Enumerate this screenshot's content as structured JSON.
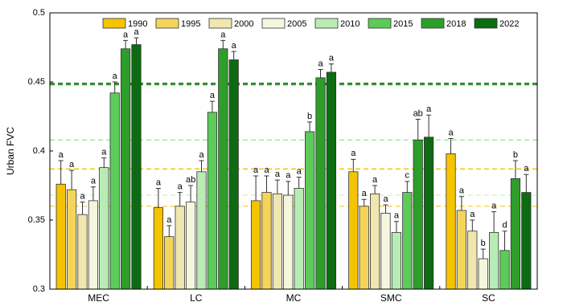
{
  "chart_data": {
    "type": "bar",
    "y_label": "Urban FVC",
    "categories": [
      "MEC",
      "LC",
      "MC",
      "SMC",
      "SC"
    ],
    "ylim": [
      0.3,
      0.5
    ],
    "yticks": [
      0.3,
      0.35,
      0.4,
      0.45,
      0.5
    ],
    "reference_lines": [
      {
        "value": 0.449,
        "color": "#0d6b12"
      },
      {
        "value": 0.448,
        "color": "#2e9e2a"
      },
      {
        "value": 0.408,
        "color": "#a8e6a0"
      },
      {
        "value": 0.387,
        "color": "#f5c400"
      },
      {
        "value": 0.368,
        "color": "#d8f2d0"
      },
      {
        "value": 0.36,
        "color": "#f3d55a"
      }
    ],
    "series": [
      {
        "name": "1990",
        "color": "#f5c400",
        "values": [
          0.376,
          0.359,
          0.364,
          0.385,
          0.398
        ],
        "errors": [
          0.017,
          0.014,
          0.018,
          0.009,
          0.011
        ],
        "letters": [
          "a",
          "a",
          "a",
          "a",
          "a"
        ]
      },
      {
        "name": "1995",
        "color": "#f3d55a",
        "values": [
          0.372,
          0.338,
          0.37,
          0.36,
          0.357
        ],
        "errors": [
          0.014,
          0.008,
          0.012,
          0.005,
          0.01
        ],
        "letters": [
          "a",
          "a",
          "a",
          "a",
          "a"
        ]
      },
      {
        "name": "2000",
        "color": "#efe6b0",
        "values": [
          0.354,
          0.36,
          0.369,
          0.369,
          0.342
        ],
        "errors": [
          0.009,
          0.01,
          0.01,
          0.006,
          0.008
        ],
        "letters": [
          "a",
          "a",
          "a",
          "a",
          "a"
        ]
      },
      {
        "name": "2005",
        "color": "#f4f7dd",
        "values": [
          0.364,
          0.363,
          0.368,
          0.355,
          0.322
        ],
        "errors": [
          0.01,
          0.012,
          0.01,
          0.006,
          0.007
        ],
        "letters": [
          "a",
          "ab",
          "a",
          "a",
          "b"
        ]
      },
      {
        "name": "2010",
        "color": "#b9ecb4",
        "values": [
          0.388,
          0.385,
          0.373,
          0.341,
          0.341
        ],
        "errors": [
          0.007,
          0.008,
          0.008,
          0.008,
          0.015
        ],
        "letters": [
          "a",
          "a",
          "a",
          "a",
          "a"
        ]
      },
      {
        "name": "2015",
        "color": "#5ccb5a",
        "values": [
          0.442,
          0.428,
          0.414,
          0.37,
          0.328
        ],
        "errors": [
          0.008,
          0.008,
          0.007,
          0.008,
          0.014
        ],
        "letters": [
          "a",
          "a",
          "b",
          "c",
          "d"
        ]
      },
      {
        "name": "2018",
        "color": "#2e9e2a",
        "values": [
          0.474,
          0.474,
          0.453,
          0.408,
          0.38
        ],
        "errors": [
          0.006,
          0.006,
          0.006,
          0.015,
          0.013
        ],
        "letters": [
          "a",
          "a",
          "a",
          "ab",
          "b"
        ]
      },
      {
        "name": "2022",
        "color": "#0d6b12",
        "values": [
          0.477,
          0.466,
          0.457,
          0.41,
          0.37
        ],
        "errors": [
          0.005,
          0.006,
          0.006,
          0.016,
          0.013
        ],
        "letters": [
          "a",
          "a",
          "a",
          "a",
          "a"
        ]
      }
    ]
  }
}
